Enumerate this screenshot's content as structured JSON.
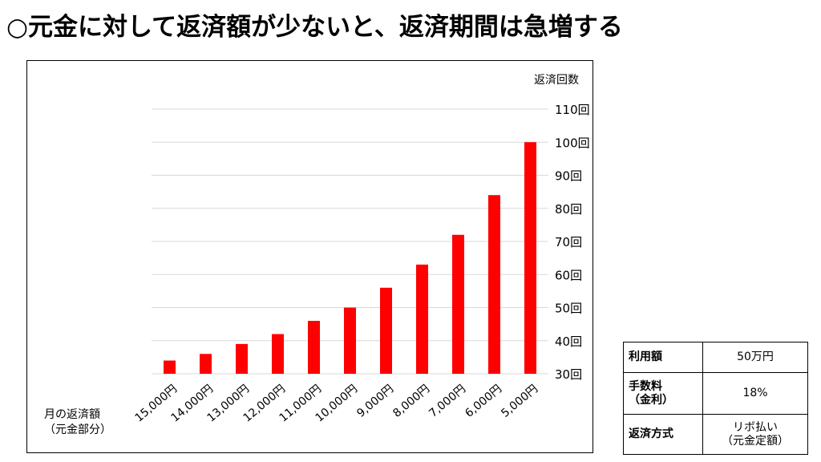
{
  "headline": "○元金に対して返済額が少ないと、返済期間は急増する",
  "chart_data": {
    "type": "bar",
    "title": "",
    "xlabel": [
      "月の返済額",
      "（元金部分）"
    ],
    "ylabel": "返済回数",
    "y_axis_side": "right",
    "ylim": [
      30,
      110
    ],
    "yticks": [
      "30回",
      "40回",
      "50回",
      "60回",
      "70回",
      "80回",
      "90回",
      "100回",
      "110回"
    ],
    "grid": true,
    "categories": [
      "15,000円",
      "14,000円",
      "13,000円",
      "12,000円",
      "11,000円",
      "10,000円",
      "9,000円",
      "8,000円",
      "7,000円",
      "6,000円",
      "5,000円"
    ],
    "values": [
      34,
      36,
      39,
      42,
      46,
      50,
      56,
      63,
      72,
      84,
      100
    ],
    "bar_color": "#ff0000"
  },
  "info_table": {
    "rows": [
      {
        "label": [
          "利用額"
        ],
        "value": [
          "50万円"
        ]
      },
      {
        "label": [
          "手数料",
          "（金利）"
        ],
        "value": [
          "18%"
        ]
      },
      {
        "label": [
          "返済方式"
        ],
        "value": [
          "リボ払い",
          "（元金定額）"
        ]
      }
    ]
  }
}
